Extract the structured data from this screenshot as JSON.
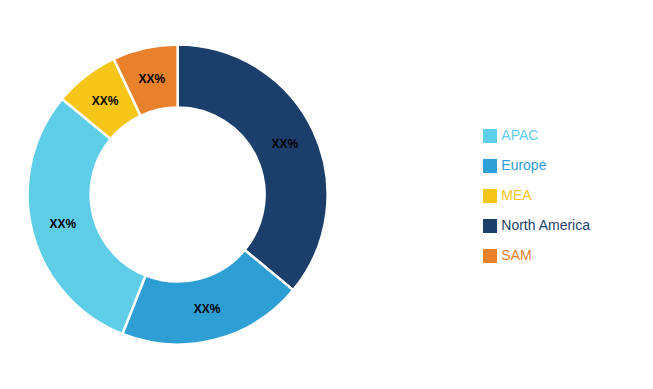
{
  "chart_data": {
    "type": "donut",
    "categories": [
      "North America",
      "Europe",
      "APAC",
      "MEA",
      "SAM"
    ],
    "values": [
      36,
      20,
      30,
      7,
      7
    ],
    "value_labels": [
      "XX%",
      "XX%",
      "XX%",
      "XX%",
      "XX%"
    ],
    "colors": [
      "#1b3f6a",
      "#2e9fd4",
      "#5ecee8",
      "#f5c518",
      "#e8812a"
    ],
    "data_labels": true,
    "legend": "right"
  }
}
